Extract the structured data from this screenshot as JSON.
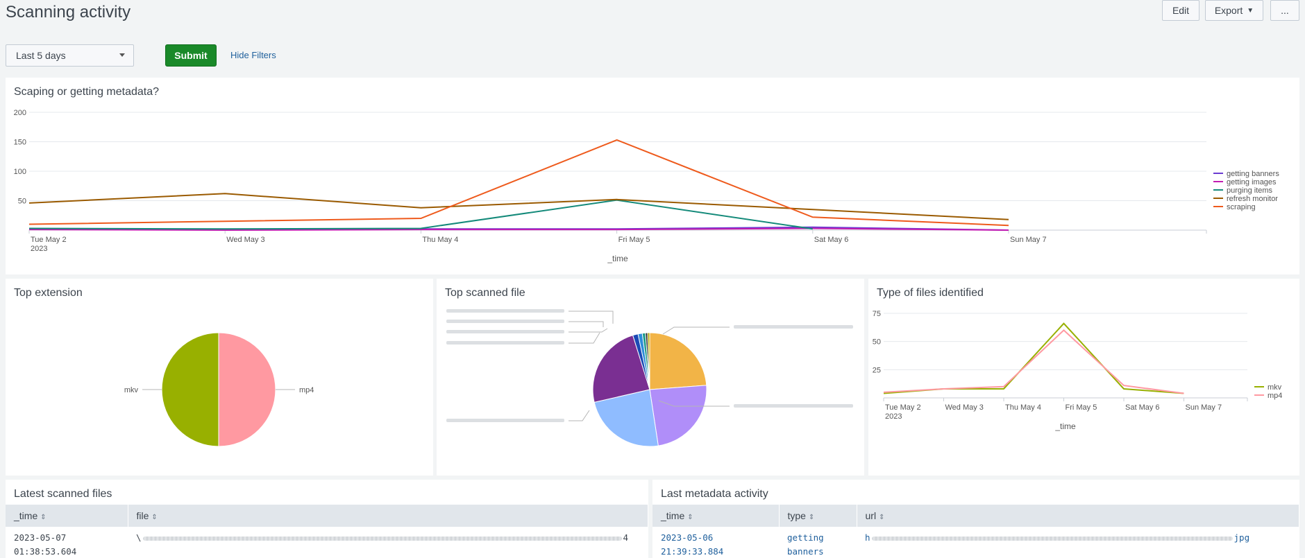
{
  "page": {
    "title": "Scanning activity"
  },
  "toolbar": {
    "edit": "Edit",
    "export": "Export",
    "more": "..."
  },
  "filters": {
    "time_range": "Last 5 days",
    "submit": "Submit",
    "hide_filters": "Hide Filters"
  },
  "colors": {
    "getting_banners": "#6a3bd1",
    "getting_images": "#c21cb1",
    "purging_items": "#148a7a",
    "refresh_monitor": "#9a5a00",
    "scraping": "#ee5a1c",
    "mkv": "#98b000",
    "mp4": "#ff99a1"
  },
  "chart_data": [
    {
      "id": "scraping",
      "type": "line",
      "title": "Scaping or getting metadata?",
      "xlabel": "_time",
      "ylabel": "",
      "categories": [
        "Tue May 2",
        "Wed May 3",
        "Thu May 4",
        "Fri May 5",
        "Sat May 6",
        "Sun May 7"
      ],
      "year_label": "2023",
      "yticks": [
        50,
        100,
        150,
        200
      ],
      "ylim": [
        0,
        200
      ],
      "series": [
        {
          "name": "getting banners",
          "color": "#6a3bd1",
          "values": [
            2,
            1,
            2,
            2,
            5,
            0
          ]
        },
        {
          "name": "getting images",
          "color": "#c21cb1",
          "values": [
            1,
            0,
            1,
            1,
            3,
            0
          ]
        },
        {
          "name": "purging items",
          "color": "#148a7a",
          "values": [
            3,
            2,
            3,
            51,
            2,
            null
          ]
        },
        {
          "name": "refresh monitor",
          "color": "#9a5a00",
          "values": [
            46,
            62,
            38,
            52,
            35,
            18
          ]
        },
        {
          "name": "scraping",
          "color": "#ee5a1c",
          "values": [
            10,
            15,
            20,
            153,
            22,
            8
          ]
        }
      ],
      "legend_position": "right"
    },
    {
      "id": "extension",
      "type": "pie",
      "title": "Top extension",
      "slices": [
        {
          "label": "mp4",
          "value": 50,
          "color": "#ff99a1"
        },
        {
          "label": "mkv",
          "value": 50,
          "color": "#98b000"
        }
      ]
    },
    {
      "id": "scanned",
      "type": "pie",
      "title": "Top scanned file",
      "slices": [
        {
          "value": 23.8,
          "color": "#f2b447"
        },
        {
          "value": 23.8,
          "color": "#b08ef9"
        },
        {
          "value": 23.8,
          "color": "#8fbcff"
        },
        {
          "value": 23.8,
          "color": "#7a2f92"
        },
        {
          "value": 1.5,
          "color": "#1b4ab5"
        },
        {
          "value": 1.2,
          "color": "#2e8cd8"
        },
        {
          "value": 0.9,
          "color": "#1f9c8b"
        },
        {
          "value": 0.6,
          "color": "#2b2b2b"
        },
        {
          "value": 0.6,
          "color": "#b8a400"
        }
      ]
    },
    {
      "id": "types",
      "type": "line",
      "title": "Type of files identified",
      "xlabel": "_time",
      "categories": [
        "Tue May 2",
        "Wed May 3",
        "Thu May 4",
        "Fri May 5",
        "Sat May 6",
        "Sun May 7"
      ],
      "year_label": "2023",
      "yticks": [
        25,
        50,
        75
      ],
      "ylim": [
        0,
        75
      ],
      "series": [
        {
          "name": "mkv",
          "color": "#98b000",
          "values": [
            4,
            8,
            8,
            66,
            8,
            4
          ]
        },
        {
          "name": "mp4",
          "color": "#ff99a1",
          "values": [
            5,
            8,
            10,
            60,
            11,
            4
          ]
        }
      ],
      "legend_position": "right"
    }
  ],
  "latest_files": {
    "title": "Latest scanned files",
    "columns": [
      "_time",
      "file"
    ],
    "rows": [
      {
        "time_date": "2023-05-07",
        "time_clock": "01:38:53.604",
        "file_prefix": "\\",
        "file_suffix": "4"
      }
    ]
  },
  "metadata": {
    "title": "Last metadata activity",
    "columns": [
      "_time",
      "type",
      "url"
    ],
    "rows": [
      {
        "time_date": "2023-05-06",
        "time_clock": "21:39:33.884",
        "type_line1": "getting",
        "type_line2": "banners",
        "url_prefix": "h",
        "url_suffix": "jpg"
      }
    ]
  }
}
